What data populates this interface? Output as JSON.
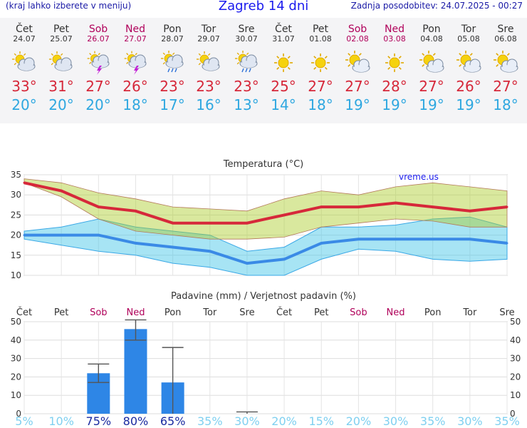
{
  "header": {
    "menu_hint": "(kraj lahko izberete v meniju)",
    "title": "Zagreb 14 dni",
    "updated": "Zadnja posodobitev: 24.07.2025 - 00:27"
  },
  "colors": {
    "high": "#d6283a",
    "low": "#2ea7e0",
    "weekend": "#b0005a",
    "bar": "#2e86e6"
  },
  "days": [
    {
      "name": "Čet",
      "date": "24.07",
      "icon": "partly-cloudy-icon",
      "hi": "33°",
      "lo": "20°",
      "weekend": false
    },
    {
      "name": "Pet",
      "date": "25.07",
      "icon": "partly-cloudy-icon",
      "hi": "31°",
      "lo": "20°",
      "weekend": false
    },
    {
      "name": "Sob",
      "date": "26.07",
      "icon": "thunderstorm-icon",
      "hi": "27°",
      "lo": "20°",
      "weekend": true
    },
    {
      "name": "Ned",
      "date": "27.07",
      "icon": "thunderstorm-icon",
      "hi": "26°",
      "lo": "18°",
      "weekend": true
    },
    {
      "name": "Pon",
      "date": "28.07",
      "icon": "sun-rain-icon",
      "hi": "23°",
      "lo": "17°",
      "weekend": false
    },
    {
      "name": "Tor",
      "date": "29.07",
      "icon": "partly-cloudy-icon",
      "hi": "23°",
      "lo": "16°",
      "weekend": false
    },
    {
      "name": "Sre",
      "date": "30.07",
      "icon": "sun-rain-icon",
      "hi": "23°",
      "lo": "13°",
      "weekend": false
    },
    {
      "name": "Čet",
      "date": "31.07",
      "icon": "sunny-icon",
      "hi": "25°",
      "lo": "14°",
      "weekend": false
    },
    {
      "name": "Pet",
      "date": "01.08",
      "icon": "sunny-icon",
      "hi": "27°",
      "lo": "18°",
      "weekend": false
    },
    {
      "name": "Sob",
      "date": "02.08",
      "icon": "sun-cloud-icon",
      "hi": "27°",
      "lo": "19°",
      "weekend": true
    },
    {
      "name": "Ned",
      "date": "03.08",
      "icon": "sunny-icon",
      "hi": "28°",
      "lo": "19°",
      "weekend": true
    },
    {
      "name": "Pon",
      "date": "04.08",
      "icon": "sun-cloud-icon",
      "hi": "27°",
      "lo": "19°",
      "weekend": false
    },
    {
      "name": "Tor",
      "date": "05.08",
      "icon": "sun-cloud-icon",
      "hi": "26°",
      "lo": "19°",
      "weekend": false
    },
    {
      "name": "Sre",
      "date": "06.08",
      "icon": "sun-cloud-icon",
      "hi": "27°",
      "lo": "18°",
      "weekend": false
    }
  ],
  "chart_data": [
    {
      "type": "line",
      "title": "Temperatura (°C)",
      "watermark": "vreme.us",
      "categories": [
        "24.07",
        "25.07",
        "26.07",
        "27.07",
        "28.07",
        "29.07",
        "30.07",
        "31.07",
        "01.08",
        "02.08",
        "03.08",
        "04.08",
        "05.08",
        "06.08"
      ],
      "ylim": [
        10,
        35
      ],
      "yticks": [
        10,
        15,
        20,
        25,
        30,
        35
      ],
      "grid": true,
      "series": [
        {
          "values": [
            33,
            31,
            27,
            26,
            23,
            23,
            23,
            25,
            27,
            27,
            28,
            27,
            26,
            27
          ]
        },
        {
          "values": [
            20,
            20,
            20,
            18,
            17,
            16,
            13,
            14,
            18,
            19,
            19,
            19,
            19,
            18
          ]
        }
      ],
      "high_band": {
        "upper": [
          34,
          33,
          30.5,
          29,
          27,
          26.5,
          26,
          29,
          31,
          30,
          32,
          33,
          32,
          31
        ],
        "lower": [
          33,
          29.5,
          24,
          21,
          20,
          19,
          19,
          19.5,
          22,
          23,
          24,
          23.5,
          22,
          22
        ]
      },
      "low_band": {
        "upper": [
          21,
          22,
          24,
          22,
          21,
          20,
          16,
          17,
          22,
          22,
          22.5,
          24,
          24.5,
          22
        ],
        "lower": [
          19,
          17.5,
          16,
          15,
          13,
          12,
          10,
          10,
          14,
          16.5,
          16,
          14,
          13.5,
          14
        ]
      }
    },
    {
      "type": "bar",
      "title": "Padavine (mm) / Verjetnost padavin (%)",
      "categories": [
        "Čet",
        "Pet",
        "Sob",
        "Ned",
        "Pon",
        "Tor",
        "Sre",
        "Čet",
        "Pet",
        "Sob",
        "Ned",
        "Pon",
        "Tor",
        "Sre"
      ],
      "weekend": [
        false,
        false,
        true,
        true,
        false,
        false,
        false,
        false,
        false,
        true,
        true,
        false,
        false,
        false
      ],
      "ylim": [
        0,
        50
      ],
      "yticks": [
        0,
        10,
        20,
        30,
        40,
        50
      ],
      "grid": true,
      "values": [
        0,
        0,
        22,
        46,
        17,
        0,
        0,
        0,
        0,
        0,
        0,
        0,
        0,
        0
      ],
      "err_low": [
        0,
        0,
        17,
        40,
        0,
        0,
        0,
        0,
        0,
        0,
        0,
        0,
        0,
        0
      ],
      "err_high": [
        0,
        0,
        27,
        51,
        36,
        0,
        1,
        0,
        0,
        0,
        0,
        0,
        0,
        0
      ],
      "probabilities": [
        "5%",
        "10%",
        "75%",
        "80%",
        "65%",
        "35%",
        "30%",
        "20%",
        "15%",
        "20%",
        "30%",
        "35%",
        "30%",
        "35%"
      ]
    }
  ]
}
